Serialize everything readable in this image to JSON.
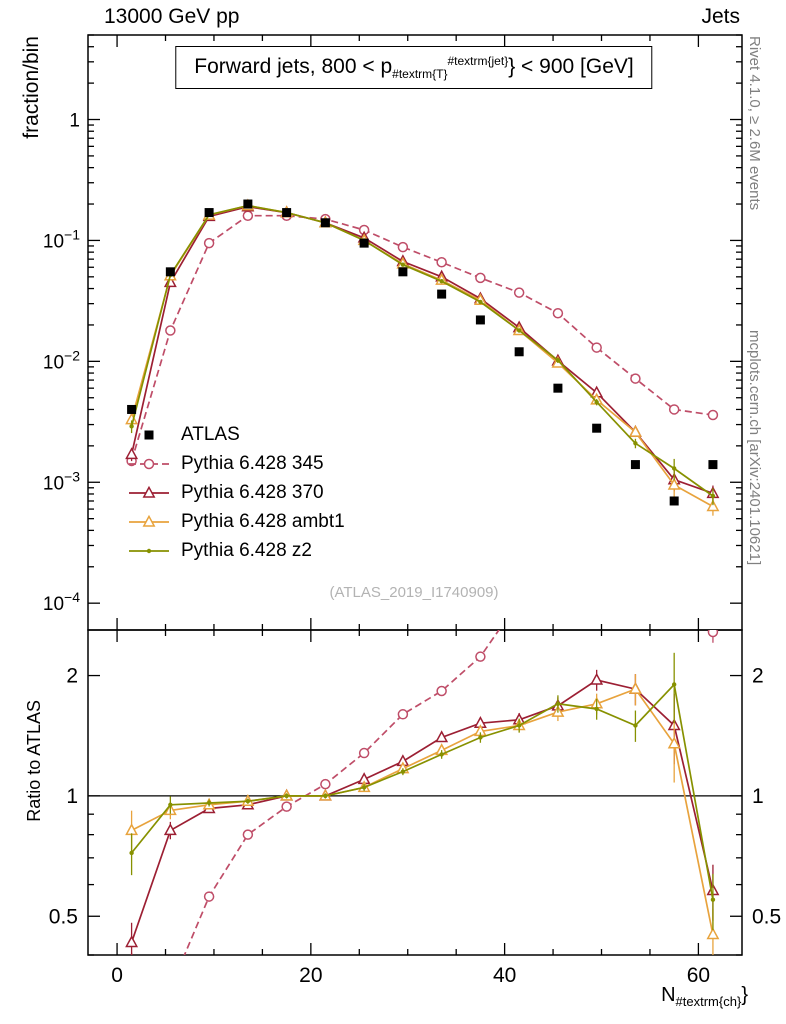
{
  "header": {
    "left": "13000 GeV pp",
    "right": "Jets"
  },
  "side_notes": {
    "top": "Rivet 4.1.0, ≥ 2.6M events",
    "bottom": "mcplots.cern.ch [arXiv:2401.10621]"
  },
  "title": {
    "pre": "Forward jets, 800 < p",
    "sub": "#textrm{T}",
    "sup": "#textrm{jet}",
    "post": "} < 900 [GeV]"
  },
  "watermark": "(ATLAS_2019_I1740909)",
  "axes": {
    "main_ylabel": "fraction/bin",
    "ratio_ylabel": "Ratio to ATLAS",
    "xlabel": {
      "pre": "N",
      "sub": "#textrm{ch}",
      "post": "}"
    }
  },
  "chart_data": {
    "type": "line",
    "x": [
      1.5,
      5.5,
      9.5,
      13.5,
      17.5,
      21.5,
      25.5,
      29.5,
      33.5,
      37.5,
      41.5,
      45.5,
      49.5,
      53.5,
      57.5,
      61.5
    ],
    "xlim": [
      -3,
      64.5
    ],
    "xticks": [
      {
        "v": 0,
        "label": "0"
      },
      {
        "v": 20,
        "label": "20"
      },
      {
        "v": 40,
        "label": "40"
      },
      {
        "v": 60,
        "label": "60"
      }
    ],
    "main": {
      "yscale": "log",
      "ylim": [
        6e-05,
        5
      ],
      "yticks": [
        {
          "v": 1,
          "label": "1"
        },
        {
          "v": 0.1,
          "label": "10^−1"
        },
        {
          "v": 0.01,
          "label": "10^−2"
        },
        {
          "v": 0.001,
          "label": "10^−3"
        },
        {
          "v": 0.0001,
          "label": "10^−4"
        }
      ]
    },
    "ratio": {
      "yscale": "log",
      "ylim": [
        0.4,
        2.6
      ],
      "yticks": [
        {
          "v": 2,
          "label": "2"
        },
        {
          "v": 1,
          "label": "1"
        },
        {
          "v": 0.5,
          "label": "0.5"
        }
      ],
      "yminor": [
        0.4,
        0.6,
        0.7,
        0.8,
        0.9
      ],
      "reference_line": 1
    },
    "series": [
      {
        "name": "ATLAS",
        "is_data": true,
        "line": false,
        "marker": "square-filled",
        "color": "#000000",
        "values": [
          0.004,
          0.055,
          0.17,
          0.2,
          0.17,
          0.14,
          0.095,
          0.055,
          0.036,
          0.022,
          0.012,
          0.006,
          0.0028,
          0.0014,
          0.0007,
          0.0014
        ]
      },
      {
        "name": "Pythia 6.428 345",
        "marker": "circle-open",
        "color": "#bf4d68",
        "dash": "7,4",
        "values": [
          0.0015,
          0.018,
          0.095,
          0.16,
          0.16,
          0.15,
          0.122,
          0.088,
          0.066,
          0.049,
          0.037,
          0.025,
          0.013,
          0.0072,
          0.004,
          0.0036
        ],
        "ratio": [
          0.375,
          0.33,
          0.56,
          0.8,
          0.94,
          1.07,
          1.28,
          1.6,
          1.83,
          2.23,
          3.08,
          4.17,
          4.64,
          5.14,
          5.71,
          2.57
        ],
        "rel_err": [
          0.08,
          0.04,
          0.02,
          0.015,
          0.015,
          0.015,
          0.015,
          0.02,
          0.02,
          0.025,
          0.03,
          0.035,
          0.04,
          0.05,
          0.07,
          0.06
        ]
      },
      {
        "name": "Pythia 6.428 370",
        "marker": "triangle-open",
        "color": "#9c1f33",
        "values": [
          0.0017,
          0.045,
          0.158,
          0.19,
          0.17,
          0.14,
          0.105,
          0.067,
          0.05,
          0.033,
          0.019,
          0.0101,
          0.0055,
          0.0026,
          0.00105,
          0.00081
        ],
        "ratio": [
          0.43,
          0.82,
          0.93,
          0.95,
          1.0,
          1.0,
          1.1,
          1.22,
          1.4,
          1.52,
          1.55,
          1.68,
          1.95,
          1.85,
          1.5,
          0.58
        ],
        "rel_err": [
          0.12,
          0.05,
          0.02,
          0.015,
          0.015,
          0.015,
          0.02,
          0.02,
          0.025,
          0.03,
          0.04,
          0.05,
          0.06,
          0.09,
          0.2,
          0.16
        ]
      },
      {
        "name": "Pythia 6.428 ambt1",
        "marker": "triangle-open",
        "color": "#e8a33d",
        "values": [
          0.0033,
          0.051,
          0.162,
          0.194,
          0.17,
          0.14,
          0.1,
          0.064,
          0.047,
          0.032,
          0.018,
          0.0097,
          0.0048,
          0.0026,
          0.00095,
          0.00063
        ],
        "ratio": [
          0.82,
          0.92,
          0.95,
          0.97,
          1.0,
          1.0,
          1.05,
          1.17,
          1.3,
          1.45,
          1.5,
          1.62,
          1.7,
          1.85,
          1.35,
          0.45
        ],
        "rel_err": [
          0.12,
          0.05,
          0.02,
          0.015,
          0.015,
          0.015,
          0.02,
          0.02,
          0.025,
          0.03,
          0.04,
          0.05,
          0.06,
          0.09,
          0.2,
          0.16
        ]
      },
      {
        "name": "Pythia 6.428 z2",
        "marker": "dot",
        "color": "#879100",
        "values": [
          0.0029,
          0.052,
          0.163,
          0.194,
          0.17,
          0.14,
          0.1,
          0.063,
          0.046,
          0.031,
          0.018,
          0.0102,
          0.0046,
          0.0021,
          0.0013,
          0.00077
        ],
        "ratio": [
          0.72,
          0.95,
          0.96,
          0.97,
          1.0,
          1.0,
          1.05,
          1.15,
          1.27,
          1.4,
          1.5,
          1.7,
          1.65,
          1.5,
          1.9,
          0.55
        ],
        "rel_err": [
          0.12,
          0.05,
          0.02,
          0.015,
          0.015,
          0.015,
          0.02,
          0.02,
          0.025,
          0.03,
          0.04,
          0.05,
          0.06,
          0.09,
          0.2,
          0.16
        ]
      }
    ]
  }
}
